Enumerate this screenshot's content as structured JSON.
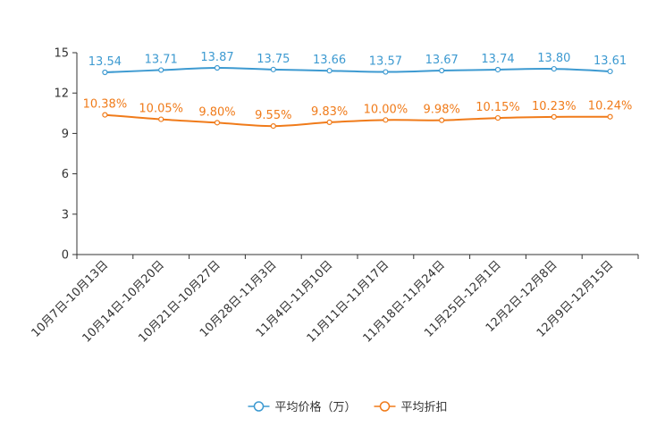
{
  "chart_data": {
    "type": "line",
    "categories": [
      "10月7日-10月13日",
      "10月14日-10月20日",
      "10月21日-10月27日",
      "10月28日-11月3日",
      "11月4日-11月10日",
      "11月11日-11月17日",
      "11月18日-11月24日",
      "11月25日-12月1日",
      "12月2日-12月8日",
      "12月9日-12月15日"
    ],
    "ylim": [
      0,
      15
    ],
    "yticks": [
      0,
      3,
      6,
      9,
      12,
      15
    ],
    "series": [
      {
        "name": "平均价格（万）",
        "color": "#3d9ad1",
        "values": [
          13.54,
          13.71,
          13.87,
          13.75,
          13.66,
          13.57,
          13.67,
          13.74,
          13.8,
          13.61
        ],
        "labels": [
          "13.54",
          "13.71",
          "13.87",
          "13.75",
          "13.66",
          "13.57",
          "13.67",
          "13.74",
          "13.80",
          "13.61"
        ]
      },
      {
        "name": "平均折扣",
        "color": "#f07b1a",
        "values": [
          10.38,
          10.05,
          9.8,
          9.55,
          9.83,
          10.0,
          9.98,
          10.15,
          10.23,
          10.24
        ],
        "labels": [
          "10.38%",
          "10.05%",
          "9.80%",
          "9.55%",
          "9.83%",
          "10.00%",
          "9.98%",
          "10.15%",
          "10.23%",
          "10.24%"
        ]
      }
    ],
    "legend_position": "bottom-center"
  }
}
